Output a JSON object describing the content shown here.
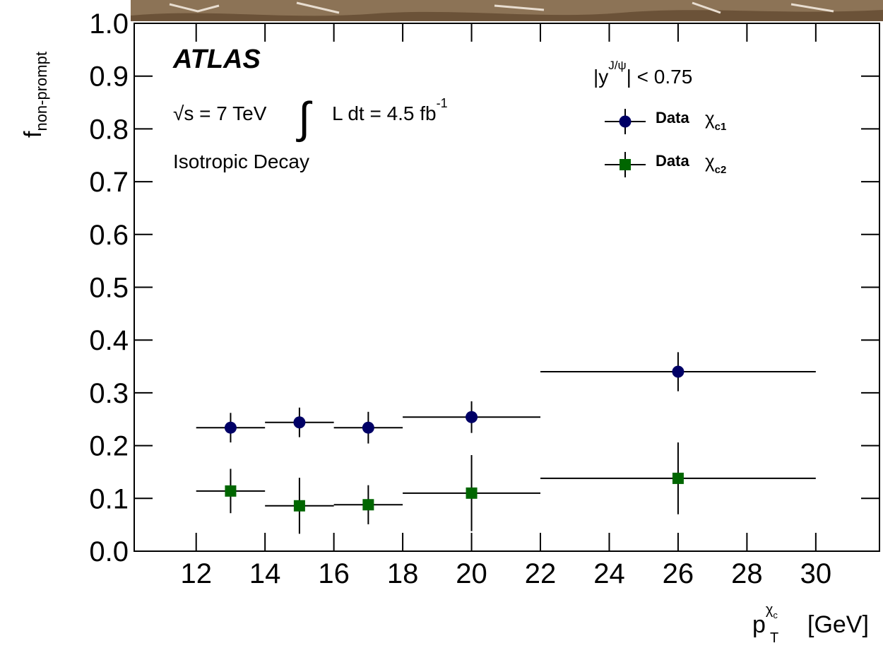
{
  "chart_data": {
    "type": "scatter",
    "x_label": {
      "base": "p",
      "sup": "χ",
      "sup_sub": "c",
      "sub": "T",
      "unit": "[GeV]"
    },
    "y_label": {
      "base": "f",
      "sub": "non-prompt"
    },
    "annotations": {
      "experiment": "ATLAS",
      "energy": "√s = 7 TeV",
      "integral": "∫",
      "lumi": "L dt = 4.5 fb",
      "lumi_sup": "-1",
      "selection": "Isotropic Decay",
      "rapidity_pre": "|y",
      "rapidity_sup": "J/ψ",
      "rapidity_post": "| < 0.75"
    },
    "series": [
      {
        "name": "Data",
        "label": "χ",
        "label_sub": "c1",
        "color": "#000066",
        "marker": "circle",
        "x": [
          13,
          15,
          17,
          20,
          26
        ],
        "x_err": [
          1,
          1,
          1,
          2,
          4
        ],
        "values": [
          0.234,
          0.244,
          0.234,
          0.254,
          0.34
        ],
        "errors": [
          0.028,
          0.028,
          0.03,
          0.03,
          0.037
        ]
      },
      {
        "name": "Data",
        "label": "χ",
        "label_sub": "c2",
        "color": "#006600",
        "marker": "square",
        "x": [
          13,
          15,
          17,
          20,
          26
        ],
        "x_err": [
          1,
          1,
          1,
          2,
          4
        ],
        "values": [
          0.114,
          0.086,
          0.088,
          0.11,
          0.138
        ],
        "errors": [
          0.042,
          0.053,
          0.037,
          0.072,
          0.068
        ]
      }
    ],
    "xlim": [
      10.2,
      31.85
    ],
    "ylim": [
      0,
      1
    ],
    "xticks": [
      12,
      14,
      16,
      18,
      20,
      22,
      24,
      26,
      28,
      30
    ],
    "yticks": [
      {
        "value": 0,
        "label": "0.0"
      },
      0.1,
      0.2,
      0.3,
      0.4,
      0.5,
      0.6,
      0.7,
      0.8,
      0.9,
      {
        "value": 1,
        "label": "1.0"
      }
    ]
  }
}
